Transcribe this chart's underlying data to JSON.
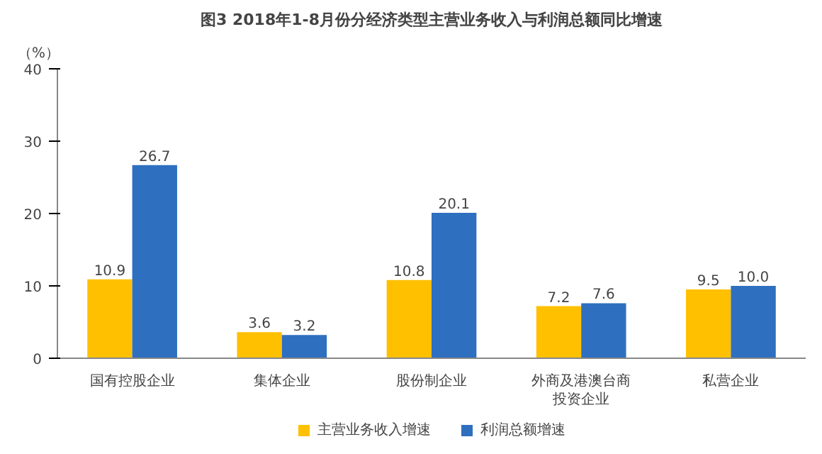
{
  "chart_data": {
    "type": "bar",
    "title": "图3 2018年1-8月份分经济类型主营业务收入与利润总额同比增速",
    "ylabel": "（%）",
    "categories": [
      "国有控股企业",
      "集体企业",
      "股份制企业",
      "外商及港澳台商投资企业",
      "私营企业"
    ],
    "series": [
      {
        "name": "主营业务收入增速",
        "color": "#ffc000",
        "values": [
          10.9,
          3.6,
          10.8,
          7.2,
          9.5
        ],
        "value_labels": [
          "10.9",
          "3.6",
          "10.8",
          "7.2",
          "9.5"
        ]
      },
      {
        "name": "利润总额增速",
        "color": "#2e6fc0",
        "values": [
          26.7,
          3.2,
          20.1,
          7.6,
          10.0
        ],
        "value_labels": [
          "26.7",
          "3.2",
          "20.1",
          "7.6",
          "10.0"
        ]
      }
    ],
    "ylim": [
      0,
      40
    ],
    "yticks": [
      0,
      10,
      20,
      30,
      40
    ],
    "grid": false,
    "legend": "bottom"
  }
}
